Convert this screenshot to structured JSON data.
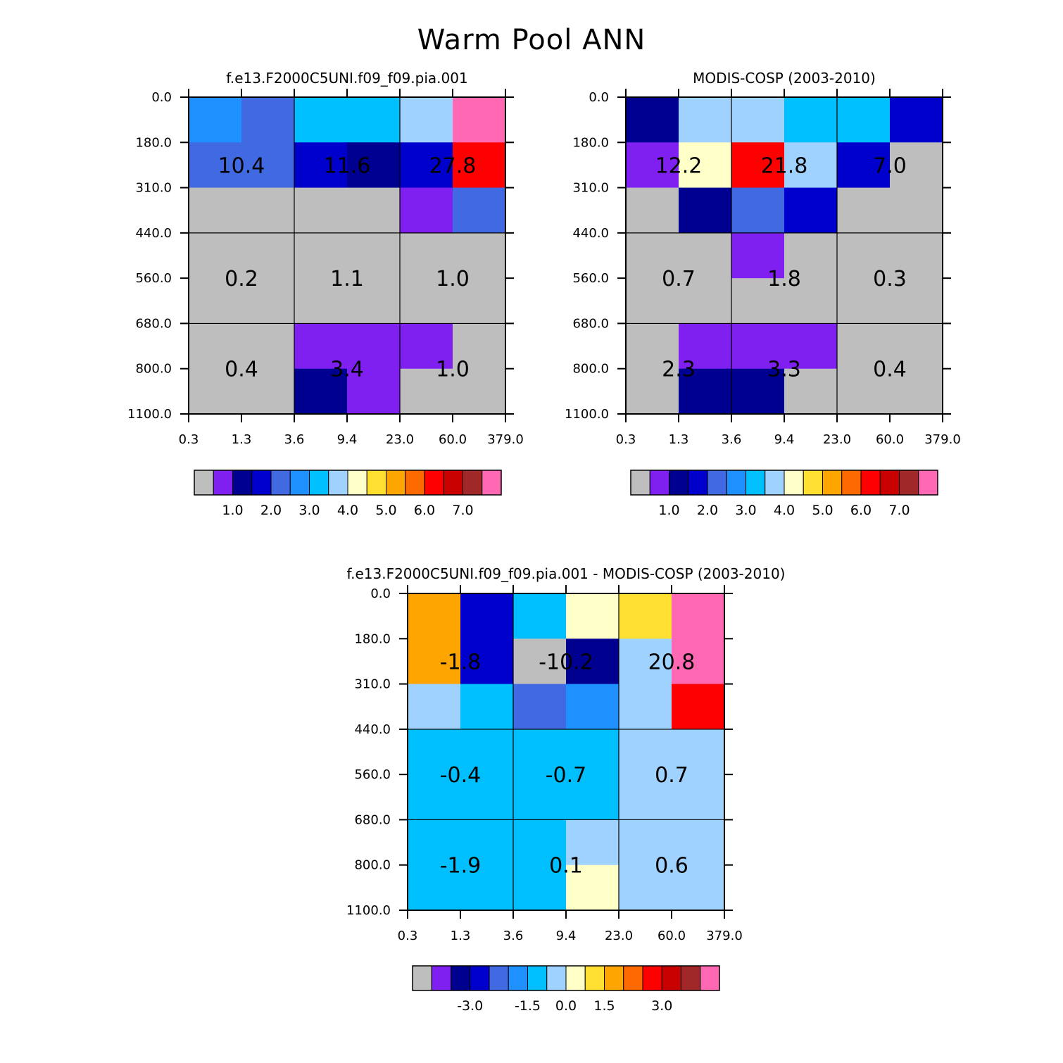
{
  "title": "Warm Pool ANN",
  "chart_data": [
    {
      "type": "heatmap",
      "title": "f.e13.F2000C5UNI.f09_f09.pia.001",
      "x_ticks": [
        "0.3",
        "1.3",
        "3.6",
        "9.4",
        "23.0",
        "60.0",
        "379.0"
      ],
      "y_ticks": [
        "0.0",
        "180.0",
        "310.0",
        "440.0",
        "560.0",
        "680.0",
        "800.0",
        "1100.0"
      ],
      "cells": [
        [
          5,
          4,
          6,
          6,
          7,
          15
        ],
        [
          4,
          4,
          3,
          2,
          3,
          12
        ],
        [
          0,
          0,
          0,
          0,
          1,
          4
        ],
        [
          0,
          0,
          0,
          0,
          0,
          0
        ],
        [
          0,
          0,
          0,
          0,
          0,
          0
        ],
        [
          0,
          0,
          1,
          1,
          1,
          0
        ],
        [
          0,
          0,
          2,
          1,
          0,
          0
        ]
      ],
      "group_values": [
        [
          "10.4",
          "11.6",
          "27.8"
        ],
        [
          "0.2",
          "1.1",
          "1.0"
        ],
        [
          "0.4",
          "3.4",
          "1.0"
        ]
      ],
      "colorbar_labels": [
        "1.0",
        "2.0",
        "3.0",
        "4.0",
        "5.0",
        "6.0",
        "7.0"
      ]
    },
    {
      "type": "heatmap",
      "title": "MODIS-COSP (2003-2010)",
      "x_ticks": [
        "0.3",
        "1.3",
        "3.6",
        "9.4",
        "23.0",
        "60.0",
        "379.0"
      ],
      "y_ticks": [
        "0.0",
        "180.0",
        "310.0",
        "440.0",
        "560.0",
        "680.0",
        "800.0",
        "1100.0"
      ],
      "cells": [
        [
          2,
          7,
          7,
          6,
          6,
          3
        ],
        [
          1,
          8,
          12,
          7,
          3,
          0
        ],
        [
          0,
          2,
          4,
          3,
          0,
          0
        ],
        [
          0,
          0,
          1,
          0,
          0,
          0
        ],
        [
          0,
          0,
          0,
          0,
          0,
          0
        ],
        [
          0,
          1,
          1,
          1,
          0,
          0
        ],
        [
          0,
          2,
          2,
          0,
          0,
          0
        ]
      ],
      "group_values": [
        [
          "12.2",
          "21.8",
          "7.0"
        ],
        [
          "0.7",
          "1.8",
          "0.3"
        ],
        [
          "2.3",
          "3.3",
          "0.4"
        ]
      ],
      "colorbar_labels": [
        "1.0",
        "2.0",
        "3.0",
        "4.0",
        "5.0",
        "6.0",
        "7.0"
      ]
    },
    {
      "type": "heatmap",
      "title": "f.e13.F2000C5UNI.f09_f09.pia.001 - MODIS-COSP (2003-2010)",
      "x_ticks": [
        "0.3",
        "1.3",
        "3.6",
        "9.4",
        "23.0",
        "60.0",
        "379.0"
      ],
      "y_ticks": [
        "0.0",
        "180.0",
        "310.0",
        "440.0",
        "560.0",
        "680.0",
        "800.0",
        "1100.0"
      ],
      "cells": [
        [
          10,
          3,
          6,
          8,
          9,
          15
        ],
        [
          10,
          3,
          0,
          2,
          7,
          15
        ],
        [
          7,
          6,
          4,
          5,
          7,
          12
        ],
        [
          6,
          6,
          6,
          6,
          7,
          7
        ],
        [
          6,
          6,
          6,
          6,
          7,
          7
        ],
        [
          6,
          6,
          6,
          7,
          7,
          7
        ],
        [
          6,
          6,
          6,
          8,
          7,
          7
        ]
      ],
      "group_values": [
        [
          "-1.8",
          "-10.2",
          "20.8"
        ],
        [
          "-0.4",
          "-0.7",
          "0.7"
        ],
        [
          "-1.9",
          "0.1",
          "0.6"
        ]
      ],
      "colorbar_labels": [
        "-3.0",
        "-1.5",
        "0.0",
        "1.5",
        "3.0"
      ]
    }
  ],
  "palette": [
    "#bebebe",
    "#8020f0",
    "#000090",
    "#0000cd",
    "#4169e1",
    "#1e90ff",
    "#00bfff",
    "#a0d2ff",
    "#ffffc8",
    "#ffe030",
    "#ffa500",
    "#ff6a00",
    "#ff0000",
    "#c80000",
    "#a02828",
    "#ff69b4"
  ]
}
